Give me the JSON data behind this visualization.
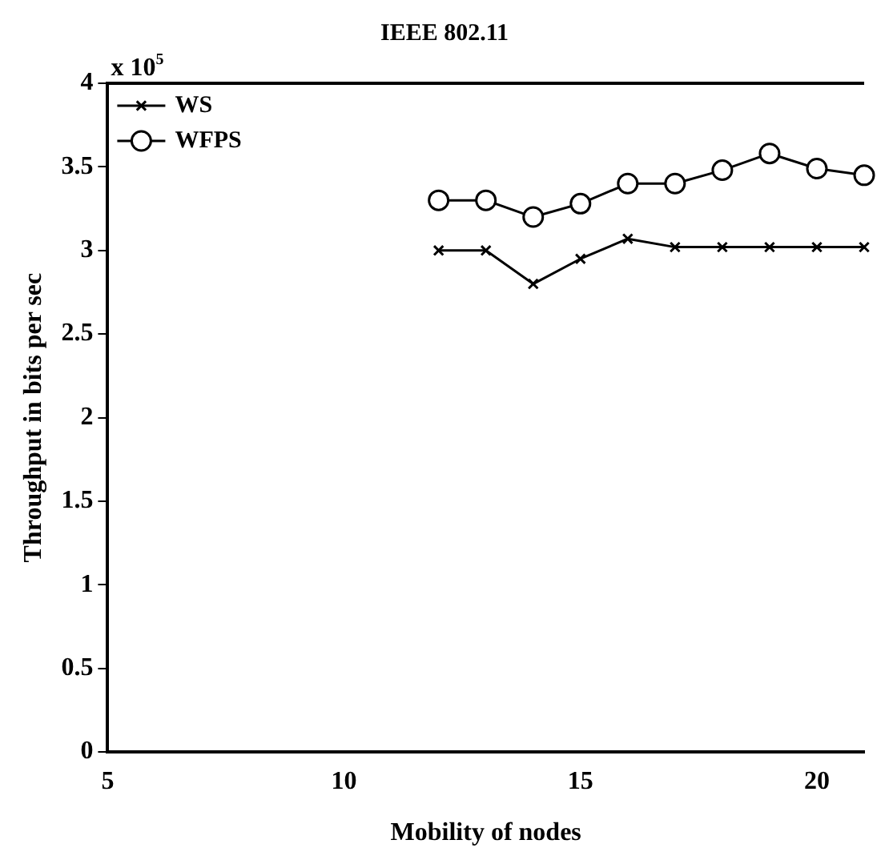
{
  "chart_data": {
    "type": "line",
    "title": "IEEE 802.11",
    "xlabel": "Mobility of nodes",
    "ylabel": "Throughput in bits per sec",
    "annotations": [
      "x 10$^{5}$"
    ],
    "xlim": [
      5,
      21
    ],
    "xticks": [
      5,
      10,
      15,
      20
    ],
    "ylim": [
      0,
      4
    ],
    "yticks": [
      0,
      0.5,
      1,
      1.5,
      2,
      2.5,
      3,
      3.5,
      4
    ],
    "grid": false,
    "legend": "top left",
    "line_style": "solid",
    "series": [
      {
        "name": "WS",
        "color": "#000000",
        "marker": "cross",
        "x": [
          12,
          13,
          14,
          15,
          16,
          17,
          18,
          19,
          20,
          21
        ],
        "values": [
          3.0,
          3.0,
          2.8,
          2.95,
          3.07,
          3.02,
          3.02,
          3.02,
          3.02,
          3.02
        ]
      },
      {
        "name": "WFPS",
        "color": "#000000",
        "marker": "circle",
        "x": [
          12,
          13,
          14,
          15,
          16,
          17,
          18,
          19,
          20,
          21
        ],
        "values": [
          3.3,
          3.3,
          3.2,
          3.28,
          3.4,
          3.4,
          3.48,
          3.58,
          3.49,
          3.45
        ]
      }
    ]
  }
}
